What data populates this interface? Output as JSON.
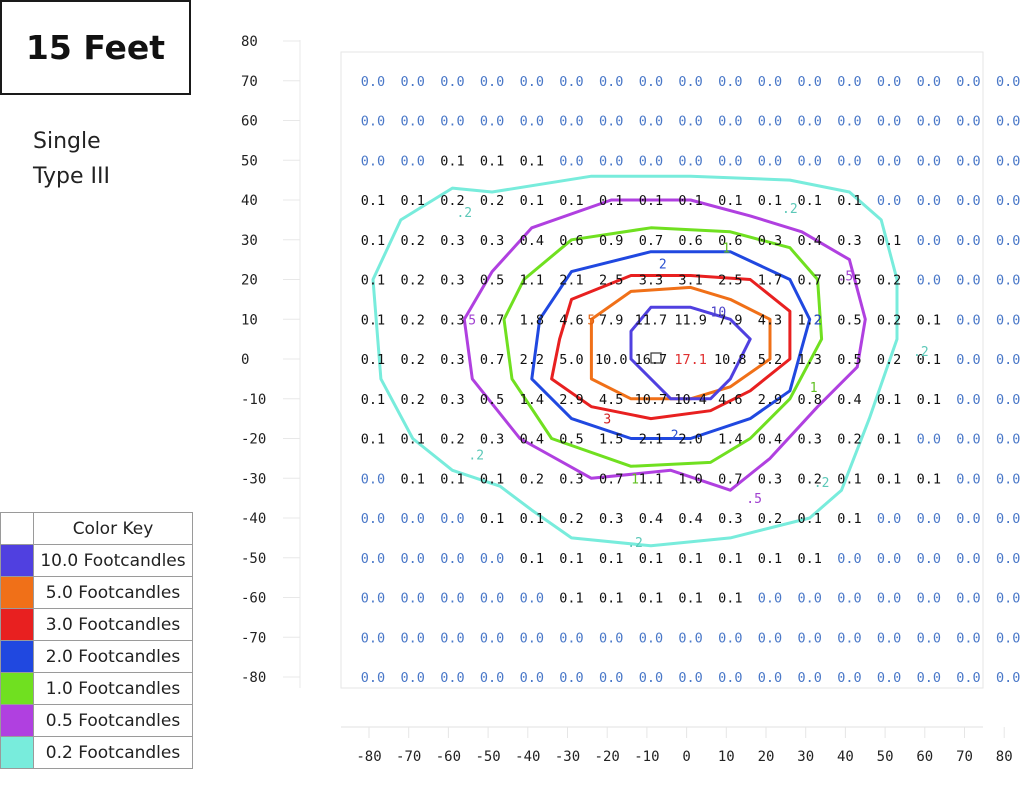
{
  "header": {
    "title": "15 Feet"
  },
  "subtitle": {
    "line1": "Single",
    "line2": "Type III"
  },
  "color_key": {
    "title": "Color Key",
    "items": [
      {
        "label": "10.0 Footcandles",
        "color": "#5040e0"
      },
      {
        "label": "5.0 Footcandles",
        "color": "#f07018"
      },
      {
        "label": "3.0 Footcandles",
        "color": "#e82020"
      },
      {
        "label": "2.0 Footcandles",
        "color": "#2048e0"
      },
      {
        "label": "1.0 Footcandles",
        "color": "#70e020"
      },
      {
        "label": "0.5 Footcandles",
        "color": "#b040e0"
      },
      {
        "label": "0.2 Footcandles",
        "color": "#78ecdc"
      }
    ]
  },
  "chart_data": {
    "type": "heatmap",
    "x": [
      -80,
      -70,
      -60,
      -50,
      -40,
      -30,
      -20,
      -10,
      0,
      10,
      20,
      30,
      40,
      50,
      60,
      70,
      80
    ],
    "y": [
      70,
      60,
      50,
      40,
      30,
      20,
      10,
      0,
      -10,
      -20,
      -30,
      -40,
      -50,
      -60,
      -70,
      -80
    ],
    "x_ticks": [
      -80,
      -70,
      -60,
      -50,
      -40,
      -30,
      -20,
      -10,
      0,
      10,
      20,
      30,
      40,
      50,
      60,
      70,
      80
    ],
    "y_ticks": [
      80,
      70,
      60,
      50,
      40,
      30,
      20,
      10,
      0,
      -10,
      -20,
      -30,
      -40,
      -50,
      -60,
      -70,
      -80
    ],
    "xlim": [
      -80,
      80
    ],
    "ylim": [
      -80,
      80
    ],
    "grid": false,
    "zero_color": "#4a78c8",
    "value_color": "#111111",
    "max_color": "#e03030",
    "values": [
      [
        "0.0",
        "0.0",
        "0.0",
        "0.0",
        "0.0",
        "0.0",
        "0.0",
        "0.0",
        "0.0",
        "0.0",
        "0.0",
        "0.0",
        "0.0",
        "0.0",
        "0.0",
        "0.0",
        "0.0"
      ],
      [
        "0.0",
        "0.0",
        "0.0",
        "0.0",
        "0.0",
        "0.0",
        "0.0",
        "0.0",
        "0.0",
        "0.0",
        "0.0",
        "0.0",
        "0.0",
        "0.0",
        "0.0",
        "0.0",
        "0.0"
      ],
      [
        "0.0",
        "0.0",
        "0.1",
        "0.1",
        "0.1",
        "0.0",
        "0.0",
        "0.0",
        "0.0",
        "0.0",
        "0.0",
        "0.0",
        "0.0",
        "0.0",
        "0.0",
        "0.0",
        "0.0"
      ],
      [
        "0.1",
        "0.1",
        "0.2",
        "0.2",
        "0.1",
        "0.1",
        "0.1",
        "0.1",
        "0.1",
        "0.1",
        "0.1",
        "0.1",
        "0.1",
        "0.0",
        "0.0",
        "0.0",
        "0.0"
      ],
      [
        "0.1",
        "0.2",
        "0.3",
        "0.3",
        "0.4",
        "0.6",
        "0.9",
        "0.7",
        "0.6",
        "0.6",
        "0.3",
        "0.4",
        "0.3",
        "0.1",
        "0.0",
        "0.0",
        "0.0"
      ],
      [
        "0.1",
        "0.2",
        "0.3",
        "0.5",
        "1.1",
        "2.1",
        "2.5",
        "3.3",
        "3.1",
        "2.5",
        "1.7",
        "0.7",
        "0.5",
        "0.2",
        "0.0",
        "0.0",
        "0.0"
      ],
      [
        "0.1",
        "0.2",
        "0.3",
        "0.7",
        "1.8",
        "4.6",
        "7.9",
        "11.7",
        "11.9",
        "7.9",
        "4.3",
        "1.2",
        "0.5",
        "0.2",
        "0.1",
        "0.0",
        "0.0"
      ],
      [
        "0.1",
        "0.2",
        "0.3",
        "0.7",
        "2.2",
        "5.0",
        "10.0",
        "16.7",
        "17.1",
        "10.8",
        "5.2",
        "1.3",
        "0.5",
        "0.2",
        "0.1",
        "0.0",
        "0.0"
      ],
      [
        "0.1",
        "0.2",
        "0.3",
        "0.5",
        "1.4",
        "2.9",
        "4.5",
        "10.7",
        "10.4",
        "4.6",
        "2.9",
        "0.8",
        "0.4",
        "0.1",
        "0.1",
        "0.0",
        "0.0"
      ],
      [
        "0.1",
        "0.1",
        "0.2",
        "0.3",
        "0.4",
        "0.5",
        "1.5",
        "2.1",
        "2.0",
        "1.4",
        "0.4",
        "0.3",
        "0.2",
        "0.1",
        "0.0",
        "0.0",
        "0.0"
      ],
      [
        "0.0",
        "0.1",
        "0.1",
        "0.1",
        "0.2",
        "0.3",
        "0.7",
        "1.1",
        "1.0",
        "0.7",
        "0.3",
        "0.2",
        "0.1",
        "0.1",
        "0.1",
        "0.0",
        "0.0"
      ],
      [
        "0.0",
        "0.0",
        "0.0",
        "0.1",
        "0.1",
        "0.2",
        "0.3",
        "0.4",
        "0.4",
        "0.3",
        "0.2",
        "0.1",
        "0.1",
        "0.0",
        "0.0",
        "0.0",
        "0.0"
      ],
      [
        "0.0",
        "0.0",
        "0.0",
        "0.0",
        "0.1",
        "0.1",
        "0.1",
        "0.1",
        "0.1",
        "0.1",
        "0.1",
        "0.1",
        "0.0",
        "0.0",
        "0.0",
        "0.0",
        "0.0"
      ],
      [
        "0.0",
        "0.0",
        "0.0",
        "0.0",
        "0.0",
        "0.1",
        "0.1",
        "0.1",
        "0.1",
        "0.1",
        "0.0",
        "0.0",
        "0.0",
        "0.0",
        "0.0",
        "0.0",
        "0.0"
      ],
      [
        "0.0",
        "0.0",
        "0.0",
        "0.0",
        "0.0",
        "0.0",
        "0.0",
        "0.0",
        "0.0",
        "0.0",
        "0.0",
        "0.0",
        "0.0",
        "0.0",
        "0.0",
        "0.0",
        "0.0"
      ],
      [
        "0.0",
        "0.0",
        "0.0",
        "0.0",
        "0.0",
        "0.0",
        "0.0",
        "0.0",
        "0.0",
        "0.0",
        "0.0",
        "0.0",
        "0.0",
        "0.0",
        "0.0",
        "0.0",
        "0.0"
      ]
    ],
    "contours": [
      {
        "level": "0.2",
        "label": ".2",
        "color": "#78ecdc",
        "label_color": "#5cc8b8",
        "points": [
          [
            -78,
            -5
          ],
          [
            -70,
            -20
          ],
          [
            -60,
            -28
          ],
          [
            -48,
            -32
          ],
          [
            -40,
            -38
          ],
          [
            -30,
            -45
          ],
          [
            -10,
            -47
          ],
          [
            10,
            -45
          ],
          [
            30,
            -40
          ],
          [
            38,
            -33
          ],
          [
            45,
            -15
          ],
          [
            52,
            5
          ],
          [
            52,
            20
          ],
          [
            48,
            35
          ],
          [
            40,
            42
          ],
          [
            25,
            45
          ],
          [
            0,
            46
          ],
          [
            -25,
            46
          ],
          [
            -50,
            42
          ],
          [
            -60,
            43
          ],
          [
            -73,
            35
          ],
          [
            -80,
            20
          ]
        ],
        "labels": [
          [
            -57,
            37
          ],
          [
            25,
            38
          ],
          [
            58,
            2
          ],
          [
            -54,
            -24
          ],
          [
            33,
            -31
          ],
          [
            -14,
            -46
          ]
        ]
      },
      {
        "level": "0.5",
        "label": ".5",
        "color": "#b040e0",
        "label_color": "#a040d0",
        "points": [
          [
            -55,
            -5
          ],
          [
            -43,
            -20
          ],
          [
            -25,
            -30
          ],
          [
            -5,
            -28
          ],
          [
            10,
            -33
          ],
          [
            20,
            -25
          ],
          [
            32,
            -12
          ],
          [
            42,
            -2
          ],
          [
            44,
            10
          ],
          [
            40,
            25
          ],
          [
            28,
            32
          ],
          [
            15,
            36
          ],
          [
            0,
            40
          ],
          [
            -20,
            40
          ],
          [
            -40,
            33
          ],
          [
            -50,
            22
          ],
          [
            -57,
            10
          ]
        ],
        "labels": [
          [
            -56,
            10
          ],
          [
            39,
            21
          ],
          [
            16,
            -35
          ]
        ]
      },
      {
        "level": "1.0",
        "label": "1",
        "color": "#70e020",
        "label_color": "#60c020",
        "points": [
          [
            -45,
            -5
          ],
          [
            -35,
            -20
          ],
          [
            -15,
            -27
          ],
          [
            5,
            -26
          ],
          [
            15,
            -20
          ],
          [
            25,
            -10
          ],
          [
            33,
            5
          ],
          [
            32,
            20
          ],
          [
            25,
            28
          ],
          [
            10,
            32
          ],
          [
            -10,
            33
          ],
          [
            -30,
            30
          ],
          [
            -42,
            20
          ],
          [
            -47,
            10
          ]
        ],
        "labels": [
          [
            9,
            28
          ],
          [
            31,
            -7
          ],
          [
            -14,
            -30
          ]
        ]
      },
      {
        "level": "2.0",
        "label": "2",
        "color": "#2048e0",
        "label_color": "#2a50d0",
        "points": [
          [
            -40,
            -5
          ],
          [
            -30,
            -15
          ],
          [
            -15,
            -20
          ],
          [
            0,
            -20
          ],
          [
            15,
            -15
          ],
          [
            25,
            -8
          ],
          [
            30,
            10
          ],
          [
            25,
            20
          ],
          [
            10,
            27
          ],
          [
            -10,
            27
          ],
          [
            -30,
            22
          ],
          [
            -38,
            10
          ]
        ],
        "labels": [
          [
            32,
            10
          ],
          [
            -7,
            24
          ],
          [
            -4,
            -19
          ]
        ]
      },
      {
        "level": "3.0",
        "label": "3",
        "color": "#e82020",
        "label_color": "#d02020",
        "points": [
          [
            -35,
            -5
          ],
          [
            -25,
            -12
          ],
          [
            -10,
            -15
          ],
          [
            5,
            -13
          ],
          [
            15,
            -8
          ],
          [
            25,
            0
          ],
          [
            25,
            12
          ],
          [
            15,
            20
          ],
          [
            0,
            21
          ],
          [
            -15,
            21
          ],
          [
            -30,
            15
          ],
          [
            -33,
            5
          ]
        ],
        "labels": [
          [
            -21,
            -15
          ]
        ]
      },
      {
        "level": "5.0",
        "label": "5",
        "color": "#f07018",
        "label_color": "#e06010",
        "points": [
          [
            -25,
            -5
          ],
          [
            -15,
            -10
          ],
          [
            0,
            -10
          ],
          [
            10,
            -7
          ],
          [
            20,
            0
          ],
          [
            20,
            10
          ],
          [
            10,
            15
          ],
          [
            0,
            18
          ],
          [
            -15,
            17
          ],
          [
            -25,
            10
          ]
        ],
        "labels": [
          [
            -25,
            10
          ]
        ]
      },
      {
        "level": "10.0",
        "label": "10",
        "color": "#5040e0",
        "label_color": "#4a40c8",
        "points": [
          [
            -15,
            0
          ],
          [
            -5,
            -10
          ],
          [
            5,
            -10
          ],
          [
            10,
            -5
          ],
          [
            15,
            5
          ],
          [
            10,
            10
          ],
          [
            0,
            13
          ],
          [
            -10,
            13
          ],
          [
            -15,
            7
          ]
        ],
        "labels": [
          [
            7,
            12
          ]
        ]
      }
    ]
  }
}
